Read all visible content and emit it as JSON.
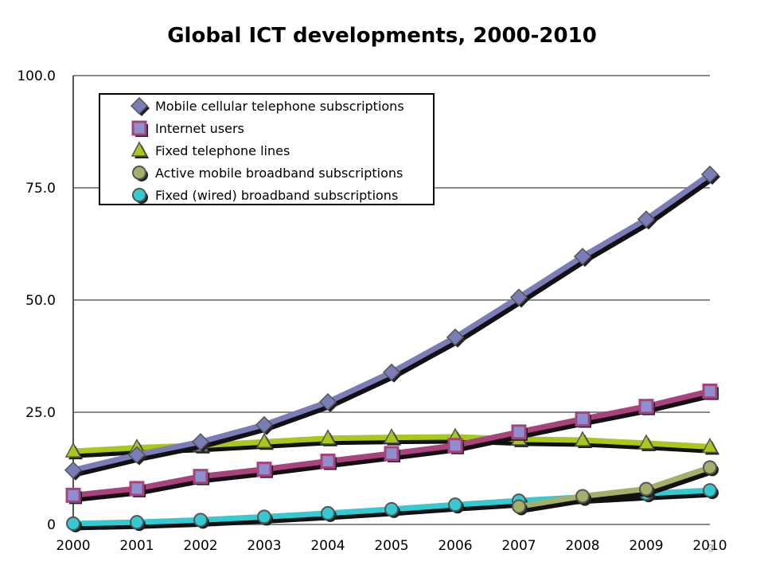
{
  "chart_data": {
    "type": "line",
    "title": "Global ICT developments, 2000-2010",
    "xlabel": "",
    "ylabel": "",
    "x": [
      "2000",
      "2001",
      "2002",
      "2003",
      "2004",
      "2005",
      "2006",
      "2007",
      "2008",
      "2009",
      "2010"
    ],
    "ylim": [
      0,
      100
    ],
    "yticks": [
      0,
      25,
      50,
      75,
      100
    ],
    "ytick_labels": [
      "0",
      "25.0",
      "50.0",
      "75.0",
      "100.0"
    ],
    "grid": true,
    "legend_position": "top-left",
    "series": [
      {
        "name": "Mobile cellular telephone subscriptions",
        "color": "#7b7db8",
        "marker": "diamond",
        "values": [
          12.1,
          15.5,
          18.4,
          22.2,
          27.3,
          33.9,
          41.7,
          50.6,
          59.7,
          68.0,
          78.0
        ]
      },
      {
        "name": "Internet users",
        "color": "#a8437e",
        "marker": "square",
        "values": [
          6.5,
          8.0,
          10.7,
          12.3,
          14.1,
          15.8,
          17.6,
          20.6,
          23.5,
          26.3,
          29.7
        ]
      },
      {
        "name": "Fixed telephone lines",
        "color": "#a8c81e",
        "marker": "triangle",
        "values": [
          16.3,
          17.1,
          17.6,
          18.4,
          19.2,
          19.4,
          19.5,
          19.0,
          18.8,
          18.1,
          17.3
        ]
      },
      {
        "name": "Active mobile broadband subscriptions",
        "color": "#a4b06a",
        "marker": "circle",
        "values": [
          null,
          null,
          null,
          null,
          null,
          null,
          null,
          4.0,
          6.3,
          7.9,
          12.7
        ]
      },
      {
        "name": "Fixed (wired) broadband subscriptions",
        "color": "#35c9d2",
        "marker": "circle",
        "values": [
          0.2,
          0.5,
          1.0,
          1.7,
          2.5,
          3.4,
          4.4,
          5.3,
          6.1,
          6.9,
          7.6
        ]
      }
    ]
  },
  "page_number": "3"
}
